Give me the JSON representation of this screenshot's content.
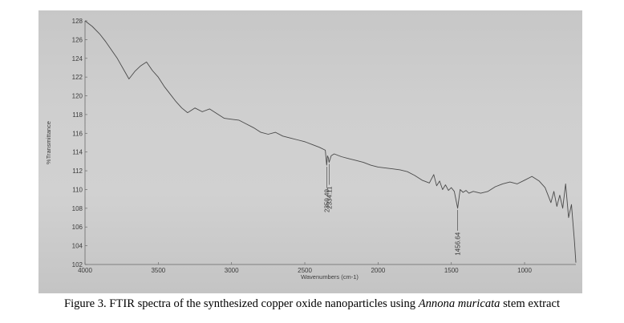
{
  "chart_data": {
    "type": "line",
    "xlabel": "Wavenumbers (cm-1)",
    "ylabel": "%Transmittance",
    "xlim": [
      4000,
      650
    ],
    "ylim": [
      102,
      128
    ],
    "x_reversed": true,
    "x_ticks": [
      4000,
      3500,
      3000,
      2500,
      2000,
      1500,
      1000
    ],
    "y_ticks": [
      102,
      104,
      106,
      108,
      110,
      112,
      114,
      116,
      118,
      120,
      122,
      124,
      126,
      128
    ],
    "grid": false,
    "legend": "none",
    "series": [
      {
        "x": [
          4000,
          3950,
          3900,
          3860,
          3820,
          3780,
          3740,
          3700,
          3660,
          3620,
          3580,
          3540,
          3500,
          3460,
          3420,
          3380,
          3340,
          3300,
          3250,
          3200,
          3150,
          3100,
          3050,
          3000,
          2950,
          2900,
          2850,
          2800,
          2750,
          2700,
          2650,
          2600,
          2550,
          2500,
          2450,
          2400,
          2360,
          2350.49,
          2345,
          2340,
          2334.11,
          2320,
          2300,
          2250,
          2200,
          2150,
          2100,
          2050,
          2000,
          1950,
          1900,
          1850,
          1800,
          1750,
          1700,
          1650,
          1620,
          1600,
          1580,
          1560,
          1540,
          1520,
          1500,
          1480,
          1456.64,
          1440,
          1420,
          1400,
          1380,
          1350,
          1300,
          1250,
          1200,
          1150,
          1100,
          1050,
          1000,
          950,
          900,
          860,
          820,
          800,
          780,
          760,
          740,
          720,
          700,
          680,
          660,
          650
        ],
        "y": [
          128,
          127.4,
          126.6,
          125.8,
          124.9,
          124.0,
          122.9,
          121.8,
          122.6,
          123.2,
          123.6,
          122.7,
          122.0,
          121.0,
          120.2,
          119.4,
          118.7,
          118.2,
          118.7,
          118.3,
          118.6,
          118.1,
          117.6,
          117.5,
          117.4,
          117.0,
          116.6,
          116.1,
          115.9,
          116.1,
          115.7,
          115.5,
          115.3,
          115.1,
          114.8,
          114.5,
          114.2,
          112.6,
          113.6,
          113.4,
          112.9,
          113.6,
          113.8,
          113.5,
          113.3,
          113.1,
          112.9,
          112.6,
          112.4,
          112.3,
          112.2,
          112.1,
          111.9,
          111.5,
          111.0,
          110.7,
          111.6,
          110.4,
          110.9,
          110.0,
          110.5,
          109.9,
          110.2,
          109.8,
          108.0,
          110.0,
          109.7,
          109.9,
          109.6,
          109.8,
          109.6,
          109.8,
          110.3,
          110.6,
          110.8,
          110.6,
          111.0,
          111.4,
          110.9,
          110.2,
          108.6,
          109.8,
          108.2,
          109.4,
          108.0,
          110.6,
          107.0,
          108.4,
          104.5,
          102.2
        ]
      }
    ],
    "annotations": [
      "2350.49",
      "2334.11",
      "1456.64"
    ]
  },
  "caption": {
    "prefix": "Figure 3. FTIR spectra of the synthesized copper oxide nanoparticles using ",
    "italic": "Annona muricata",
    "suffix": " stem extract"
  }
}
